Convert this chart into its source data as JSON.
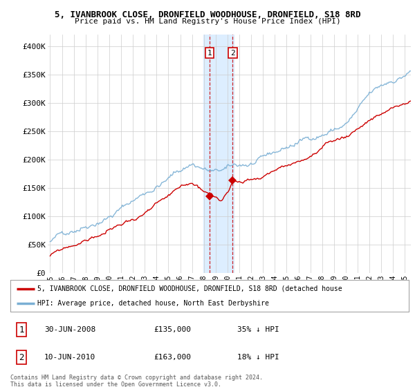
{
  "title1": "5, IVANBROOK CLOSE, DRONFIELD WOODHOUSE, DRONFIELD, S18 8RD",
  "title2": "Price paid vs. HM Land Registry's House Price Index (HPI)",
  "legend_red": "5, IVANBROOK CLOSE, DRONFIELD WOODHOUSE, DRONFIELD, S18 8RD (detached house",
  "legend_blue": "HPI: Average price, detached house, North East Derbyshire",
  "annotation1_label": "1",
  "annotation1_date": "30-JUN-2008",
  "annotation1_price": "£135,000",
  "annotation1_hpi": "35% ↓ HPI",
  "annotation2_label": "2",
  "annotation2_date": "10-JUN-2010",
  "annotation2_price": "£163,000",
  "annotation2_hpi": "18% ↓ HPI",
  "footer": "Contains HM Land Registry data © Crown copyright and database right 2024.\nThis data is licensed under the Open Government Licence v3.0.",
  "xmin": 1994.8,
  "xmax": 2025.5,
  "ymin": 0,
  "ymax": 420000,
  "yticks": [
    0,
    50000,
    100000,
    150000,
    200000,
    250000,
    300000,
    350000,
    400000
  ],
  "ytick_labels": [
    "£0",
    "£50K",
    "£100K",
    "£150K",
    "£200K",
    "£250K",
    "£300K",
    "£350K",
    "£400K"
  ],
  "highlight_x1": 2007.95,
  "highlight_x2": 2010.55,
  "purchase1_x": 2008.49,
  "purchase1_y": 135000,
  "purchase2_x": 2010.44,
  "purchase2_y": 163000,
  "red_color": "#cc0000",
  "blue_color": "#7aafd4",
  "highlight_color": "#ddeeff",
  "bg_color": "#ffffff"
}
